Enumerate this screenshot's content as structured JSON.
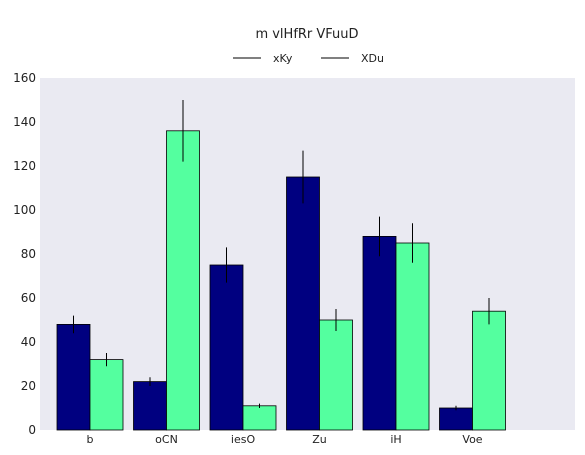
{
  "chart_data": {
    "type": "bar",
    "title": "m vlHfRr VFuuD",
    "xlabel": "",
    "ylabel": "",
    "categories": [
      "b",
      "oCN",
      "iesO",
      "Zu",
      "iH",
      "Voe"
    ],
    "series": [
      {
        "name": "xKy",
        "color": "#000080",
        "values": [
          48,
          22,
          75,
          115,
          88,
          10
        ],
        "errors": [
          4,
          2,
          8,
          12,
          9,
          1
        ]
      },
      {
        "name": "XDu",
        "color": "#54ff9f",
        "values": [
          32,
          136,
          11,
          50,
          85,
          54
        ],
        "errors": [
          3,
          14,
          1,
          5,
          9,
          6
        ]
      }
    ],
    "ylim": [
      0,
      160
    ],
    "yticks": [
      0,
      20,
      40,
      60,
      80,
      100,
      120,
      140,
      160
    ],
    "grid": false,
    "legend_position": "top-center",
    "background": "#eaeaf2"
  }
}
